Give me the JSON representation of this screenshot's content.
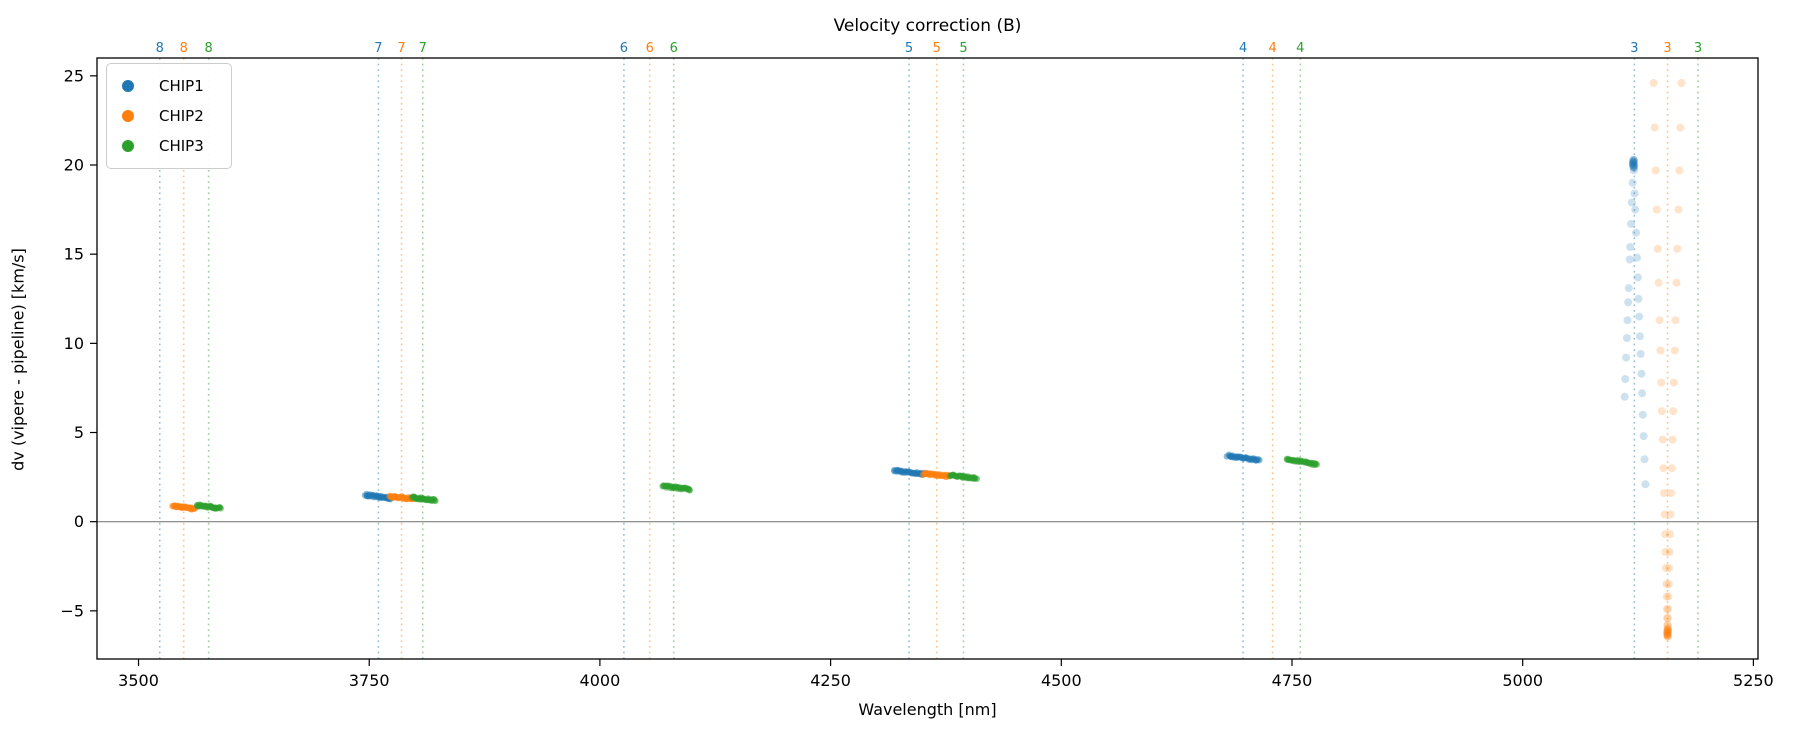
{
  "figure": {
    "title": "Velocity correction (B)",
    "xlabel": "Wavelength [nm]",
    "ylabel": "dv (vipere - pipeline) [km/s]"
  },
  "legend": {
    "items": [
      {
        "label": "CHIP1",
        "color": "#1f77b4"
      },
      {
        "label": "CHIP2",
        "color": "#ff7f0e"
      },
      {
        "label": "CHIP3",
        "color": "#2ca02c"
      }
    ]
  },
  "chart_data": {
    "type": "scatter",
    "title": "Velocity correction (B)",
    "xlabel": "Wavelength [nm]",
    "ylabel": "dv (vipere - pipeline) [km/s]",
    "xlim": [
      3455,
      5255
    ],
    "ylim": [
      -7.7,
      26.0
    ],
    "x_ticks": [
      3500,
      3750,
      4000,
      4250,
      4500,
      4750,
      5000,
      5250
    ],
    "y_ticks": [
      -5,
      0,
      5,
      10,
      15,
      20,
      25
    ],
    "y_tick_labels": [
      "−5",
      "0",
      "5",
      "10",
      "15",
      "20",
      "25"
    ],
    "grid": false,
    "legend_position": "upper left",
    "zero_line": {
      "y": 0,
      "color": "#808080"
    },
    "colors": {
      "CHIP1": "#1f77b4",
      "CHIP2": "#ff7f0e",
      "CHIP3": "#2ca02c"
    },
    "guide_line_style": {
      "pattern": "dotted",
      "opacity": 0.45
    },
    "order_markers": [
      {
        "order": "8",
        "lines": [
          {
            "chip": "CHIP1",
            "wavelength": 3523
          },
          {
            "chip": "CHIP2",
            "wavelength": 3549
          },
          {
            "chip": "CHIP3",
            "wavelength": 3576
          }
        ]
      },
      {
        "order": "7",
        "lines": [
          {
            "chip": "CHIP1",
            "wavelength": 3760
          },
          {
            "chip": "CHIP2",
            "wavelength": 3785
          },
          {
            "chip": "CHIP3",
            "wavelength": 3808
          }
        ]
      },
      {
        "order": "6",
        "lines": [
          {
            "chip": "CHIP1",
            "wavelength": 4026
          },
          {
            "chip": "CHIP2",
            "wavelength": 4054
          },
          {
            "chip": "CHIP3",
            "wavelength": 4080
          }
        ]
      },
      {
        "order": "5",
        "lines": [
          {
            "chip": "CHIP1",
            "wavelength": 4335
          },
          {
            "chip": "CHIP2",
            "wavelength": 4365
          },
          {
            "chip": "CHIP3",
            "wavelength": 4394
          }
        ]
      },
      {
        "order": "4",
        "lines": [
          {
            "chip": "CHIP1",
            "wavelength": 4697
          },
          {
            "chip": "CHIP2",
            "wavelength": 4729
          },
          {
            "chip": "CHIP3",
            "wavelength": 4759
          }
        ]
      },
      {
        "order": "3",
        "lines": [
          {
            "chip": "CHIP1",
            "wavelength": 5121
          },
          {
            "chip": "CHIP2",
            "wavelength": 5157
          },
          {
            "chip": "CHIP3",
            "wavelength": 5190
          }
        ]
      }
    ],
    "streak_clusters": [
      {
        "chip": "CHIP2",
        "order": "8",
        "wavelength_center": 3549,
        "span_nm": 24,
        "dv_start": 0.9,
        "dv_end": 0.72
      },
      {
        "chip": "CHIP3",
        "order": "8",
        "wavelength_center": 3576,
        "span_nm": 26,
        "dv_start": 0.93,
        "dv_end": 0.75
      },
      {
        "chip": "CHIP1",
        "order": "7",
        "wavelength_center": 3760,
        "span_nm": 28,
        "dv_start": 1.5,
        "dv_end": 1.3
      },
      {
        "chip": "CHIP2",
        "order": "7",
        "wavelength_center": 3785,
        "span_nm": 26,
        "dv_start": 1.42,
        "dv_end": 1.28
      },
      {
        "chip": "CHIP3",
        "order": "7",
        "wavelength_center": 3809,
        "span_nm": 25,
        "dv_start": 1.35,
        "dv_end": 1.2
      },
      {
        "chip": "CHIP3",
        "order": "6",
        "wavelength_center": 4083,
        "span_nm": 30,
        "dv_start": 2.0,
        "dv_end": 1.8
      },
      {
        "chip": "CHIP1",
        "order": "5",
        "wavelength_center": 4335,
        "span_nm": 33,
        "dv_start": 2.85,
        "dv_end": 2.68
      },
      {
        "chip": "CHIP2",
        "order": "5",
        "wavelength_center": 4365,
        "span_nm": 29,
        "dv_start": 2.7,
        "dv_end": 2.56
      },
      {
        "chip": "CHIP3",
        "order": "5",
        "wavelength_center": 4394,
        "span_nm": 28,
        "dv_start": 2.6,
        "dv_end": 2.44
      },
      {
        "chip": "CHIP1",
        "order": "4",
        "wavelength_center": 4697,
        "span_nm": 34,
        "dv_start": 3.7,
        "dv_end": 3.45
      },
      {
        "chip": "CHIP3",
        "order": "4",
        "wavelength_center": 4761,
        "span_nm": 33,
        "dv_start": 3.5,
        "dv_end": 3.2
      }
    ],
    "fan_clusters": [
      {
        "chip": "CHIP1",
        "order": "3",
        "wavelength_center": 5120,
        "apex": "top",
        "apex_dv": 20.2,
        "apex_points": [
          [
            20.3,
            0.0
          ],
          [
            20.2,
            -0.4
          ],
          [
            20.15,
            0.4
          ],
          [
            20.05,
            -0.8
          ],
          [
            20.0,
            0.9
          ],
          [
            19.95,
            0.2
          ],
          [
            19.9,
            -0.2
          ],
          [
            20.25,
            0.6
          ],
          [
            20.1,
            -0.6
          ],
          [
            19.85,
            0.7
          ]
        ],
        "points": [
          [
            19.0,
            -0.9
          ],
          [
            17.9,
            -1.7
          ],
          [
            16.7,
            -2.5
          ],
          [
            15.4,
            -3.5
          ],
          [
            14.7,
            -4.0
          ],
          [
            13.1,
            -5.1
          ],
          [
            12.3,
            -5.7
          ],
          [
            11.3,
            -6.4
          ],
          [
            10.3,
            -7.1
          ],
          [
            9.2,
            -7.9
          ],
          [
            8.0,
            -8.8
          ],
          [
            7.0,
            -9.5
          ],
          [
            19.7,
            0.4
          ],
          [
            18.4,
            1.3
          ],
          [
            17.5,
            1.9
          ],
          [
            16.2,
            2.9
          ],
          [
            14.8,
            3.9
          ],
          [
            13.7,
            4.7
          ],
          [
            12.5,
            5.5
          ],
          [
            11.5,
            6.3
          ],
          [
            10.4,
            7.0
          ],
          [
            9.4,
            7.8
          ],
          [
            8.3,
            8.6
          ],
          [
            7.2,
            9.4
          ],
          [
            6.0,
            10.2
          ],
          [
            4.8,
            11.1
          ],
          [
            3.5,
            12.0
          ],
          [
            2.1,
            13.0
          ]
        ]
      },
      {
        "chip": "CHIP2",
        "order": "3",
        "wavelength_center": 5157,
        "apex": "bottom",
        "apex_dv": -6.3,
        "apex_points": [
          [
            -6.0,
            0.2
          ],
          [
            -6.1,
            -0.4
          ],
          [
            -6.15,
            0.5
          ],
          [
            -6.2,
            -0.1
          ],
          [
            -6.3,
            0.3
          ],
          [
            -6.35,
            -0.3
          ],
          [
            -6.4,
            0.0
          ],
          [
            -6.45,
            0.15
          ],
          [
            -6.25,
            -0.5
          ],
          [
            -6.05,
            0.6
          ]
        ],
        "points": [
          [
            24.6,
            15.1
          ],
          [
            24.6,
            -15.1
          ],
          [
            22.1,
            13.9
          ],
          [
            22.1,
            -13.9
          ],
          [
            19.7,
            12.7
          ],
          [
            19.7,
            -12.7
          ],
          [
            17.5,
            11.7
          ],
          [
            17.5,
            -11.7
          ],
          [
            15.3,
            10.6
          ],
          [
            15.3,
            -10.6
          ],
          [
            13.4,
            9.7
          ],
          [
            13.4,
            -9.7
          ],
          [
            11.3,
            8.6
          ],
          [
            11.3,
            -8.6
          ],
          [
            9.6,
            7.8
          ],
          [
            9.6,
            -7.8
          ],
          [
            7.8,
            6.9
          ],
          [
            7.8,
            -6.9
          ],
          [
            6.2,
            6.1
          ],
          [
            6.2,
            -6.1
          ],
          [
            4.6,
            5.3
          ],
          [
            4.6,
            -5.3
          ],
          [
            3.0,
            4.6
          ],
          [
            3.0,
            -4.6
          ],
          [
            1.6,
            3.9
          ],
          [
            1.6,
            -3.9
          ],
          [
            0.4,
            3.3
          ],
          [
            0.4,
            -3.3
          ],
          [
            -0.7,
            2.7
          ],
          [
            -0.7,
            -2.7
          ],
          [
            -1.7,
            2.3
          ],
          [
            -1.7,
            -2.3
          ],
          [
            -2.6,
            1.8
          ],
          [
            -2.6,
            -1.8
          ],
          [
            -3.5,
            1.4
          ],
          [
            -3.5,
            -1.4
          ],
          [
            -4.2,
            1.0
          ],
          [
            -4.2,
            -1.0
          ],
          [
            -4.9,
            0.7
          ],
          [
            -4.9,
            -0.7
          ],
          [
            -5.4,
            0.5
          ],
          [
            -5.4,
            -0.5
          ],
          [
            -5.8,
            0.3
          ],
          [
            -5.8,
            -0.3
          ]
        ]
      }
    ]
  }
}
